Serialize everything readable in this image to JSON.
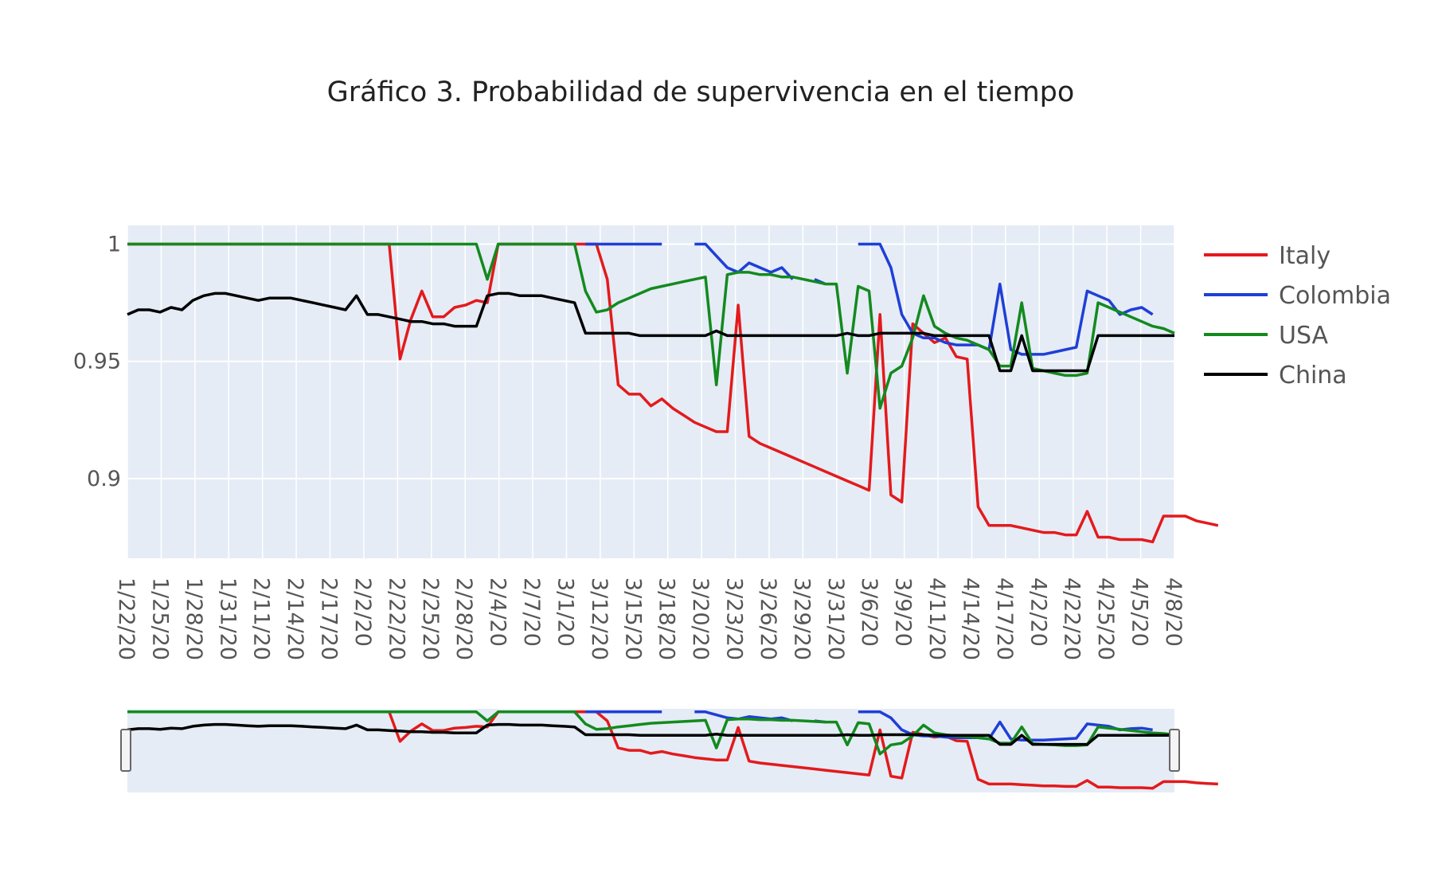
{
  "chart_data": {
    "type": "line",
    "title": "Gráfico 3. Probabilidad de supervivencia en el tiempo",
    "xlabel": "",
    "ylabel": "",
    "ylim": [
      0.866,
      1.008
    ],
    "yticks": [
      {
        "value": 1,
        "label": "1"
      },
      {
        "value": 0.95,
        "label": "0.95"
      },
      {
        "value": 0.9,
        "label": "0.9"
      }
    ],
    "x_tick_labels": [
      "1/22/20",
      "1/25/20",
      "1/28/20",
      "1/31/20",
      "2/11/20",
      "2/14/20",
      "2/17/20",
      "2/2/20",
      "2/22/20",
      "2/25/20",
      "2/28/20",
      "2/4/20",
      "2/7/20",
      "3/1/20",
      "3/12/20",
      "3/15/20",
      "3/18/20",
      "3/20/20",
      "3/23/20",
      "3/26/20",
      "3/29/20",
      "3/31/20",
      "3/6/20",
      "3/9/20",
      "4/11/20",
      "4/14/20",
      "4/17/20",
      "4/2/20",
      "4/22/20",
      "4/25/20",
      "4/5/20",
      "4/8/20"
    ],
    "num_points": 97,
    "grid": true,
    "legend_position": "right",
    "range_slider": true,
    "series": [
      {
        "name": "Italy",
        "color": "#e31a1c",
        "values": [
          1,
          1,
          1,
          1,
          1,
          1,
          1,
          1,
          1,
          1,
          1,
          1,
          1,
          1,
          1,
          1,
          1,
          1,
          1,
          1,
          1,
          1,
          1,
          1,
          1,
          0.951,
          0.968,
          0.98,
          0.969,
          0.969,
          0.973,
          0.974,
          0.976,
          0.975,
          1,
          1,
          1,
          1,
          1,
          1,
          1,
          1,
          1,
          1,
          0.985,
          0.94,
          0.936,
          0.936,
          0.931,
          0.934,
          0.93,
          0.927,
          0.924,
          0.922,
          0.92,
          0.92,
          0.974,
          0.918,
          0.915,
          0.913,
          0.911,
          0.909,
          0.907,
          0.905,
          0.903,
          0.901,
          0.899,
          0.897,
          0.895,
          0.97,
          0.893,
          0.89,
          0.966,
          0.962,
          0.958,
          0.96,
          0.952,
          0.951,
          0.888,
          0.88,
          0.88,
          0.88,
          0.879,
          0.878,
          0.877,
          0.877,
          0.876,
          0.876,
          0.886,
          0.875,
          0.875,
          0.874,
          0.874,
          0.874,
          0.873,
          0.884,
          0.884,
          0.884,
          0.882,
          0.881,
          0.88
        ]
      },
      {
        "name": "Colombia",
        "color": "#1f3fd6",
        "values": [
          null,
          null,
          null,
          null,
          null,
          null,
          null,
          null,
          null,
          null,
          null,
          null,
          null,
          null,
          null,
          null,
          null,
          null,
          null,
          null,
          null,
          null,
          null,
          null,
          null,
          null,
          null,
          null,
          null,
          null,
          null,
          null,
          null,
          null,
          null,
          null,
          null,
          null,
          null,
          null,
          null,
          null,
          1,
          1,
          1,
          1,
          1,
          1,
          1,
          1,
          null,
          null,
          1,
          1,
          0.995,
          0.99,
          0.988,
          0.992,
          0.99,
          0.988,
          0.99,
          0.985,
          null,
          0.985,
          0.983,
          null,
          null,
          1,
          1,
          1,
          0.99,
          0.97,
          0.962,
          0.96,
          0.96,
          0.958,
          0.957,
          0.957,
          0.957,
          0.955,
          0.983,
          0.955,
          0.953,
          0.953,
          0.953,
          0.954,
          0.955,
          0.956,
          0.98,
          0.978,
          0.976,
          0.97,
          0.972,
          0.973,
          0.97
        ]
      },
      {
        "name": "USA",
        "color": "#138a1e",
        "values": [
          1,
          1,
          1,
          1,
          1,
          1,
          1,
          1,
          1,
          1,
          1,
          1,
          1,
          1,
          1,
          1,
          1,
          1,
          1,
          1,
          1,
          1,
          1,
          1,
          1,
          1,
          1,
          1,
          1,
          1,
          1,
          1,
          1,
          0.985,
          1,
          1,
          1,
          1,
          1,
          1,
          1,
          1,
          0.98,
          0.971,
          0.972,
          0.975,
          0.977,
          0.979,
          0.981,
          0.982,
          0.983,
          0.984,
          0.985,
          0.986,
          0.94,
          0.987,
          0.988,
          0.988,
          0.987,
          0.987,
          0.986,
          0.986,
          0.985,
          0.984,
          0.983,
          0.983,
          0.945,
          0.982,
          0.98,
          0.93,
          0.945,
          0.948,
          0.96,
          0.978,
          0.965,
          0.962,
          0.96,
          0.959,
          0.957,
          0.955,
          0.948,
          0.948,
          0.975,
          0.947,
          0.946,
          0.945,
          0.944,
          0.944,
          0.945,
          0.975,
          0.973,
          0.971,
          0.969,
          0.967,
          0.965,
          0.964,
          0.962
        ]
      },
      {
        "name": "China",
        "color": "#000000",
        "values": [
          0.97,
          0.972,
          0.972,
          0.971,
          0.973,
          0.972,
          0.976,
          0.978,
          0.979,
          0.979,
          0.978,
          0.977,
          0.976,
          0.977,
          0.977,
          0.977,
          0.976,
          0.975,
          0.974,
          0.973,
          0.972,
          0.978,
          0.97,
          0.97,
          0.969,
          0.968,
          0.967,
          0.967,
          0.966,
          0.966,
          0.965,
          0.965,
          0.965,
          0.978,
          0.979,
          0.979,
          0.978,
          0.978,
          0.978,
          0.977,
          0.976,
          0.975,
          0.962,
          0.962,
          0.962,
          0.962,
          0.962,
          0.961,
          0.961,
          0.961,
          0.961,
          0.961,
          0.961,
          0.961,
          0.963,
          0.961,
          0.961,
          0.961,
          0.961,
          0.961,
          0.961,
          0.961,
          0.961,
          0.961,
          0.961,
          0.961,
          0.962,
          0.961,
          0.961,
          0.962,
          0.962,
          0.962,
          0.962,
          0.962,
          0.961,
          0.961,
          0.961,
          0.961,
          0.961,
          0.961,
          0.946,
          0.946,
          0.961,
          0.946,
          0.946,
          0.946,
          0.946,
          0.946,
          0.946,
          0.961,
          0.961,
          0.961,
          0.961,
          0.961,
          0.961,
          0.961,
          0.961
        ]
      }
    ]
  }
}
